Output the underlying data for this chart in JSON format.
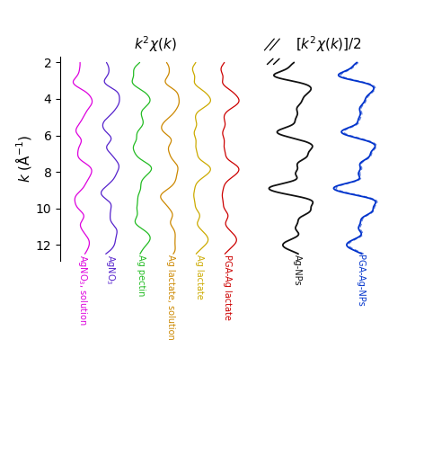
{
  "k_min": 2.0,
  "k_max": 12.5,
  "yticks": [
    2,
    4,
    6,
    8,
    10,
    12
  ],
  "curves_left": [
    {
      "name": "AgNO$_3$, solution",
      "color": "#dd00dd",
      "x_offset": 0.0,
      "amp": 0.38,
      "freqs": [
        1.7,
        3.1,
        4.8
      ],
      "phases": [
        0.5,
        1.2,
        2.1
      ],
      "weights": [
        0.55,
        0.3,
        0.15
      ]
    },
    {
      "name": "AgNO$_3$",
      "color": "#5522cc",
      "x_offset": 0.9,
      "amp": 0.38,
      "freqs": [
        1.75,
        3.3,
        5.1
      ],
      "phases": [
        0.8,
        0.4,
        1.8
      ],
      "weights": [
        0.55,
        0.3,
        0.15
      ]
    },
    {
      "name": "Ag pectin",
      "color": "#22bb22",
      "x_offset": 1.85,
      "amp": 0.38,
      "freqs": [
        1.72,
        3.2,
        5.0
      ],
      "phases": [
        0.2,
        1.8,
        0.5
      ],
      "weights": [
        0.55,
        0.3,
        0.15
      ]
    },
    {
      "name": "Ag lactate, solution",
      "color": "#cc8800",
      "x_offset": 2.8,
      "amp": 0.38,
      "freqs": [
        1.68,
        3.15,
        4.9
      ],
      "phases": [
        1.1,
        0.7,
        2.5
      ],
      "weights": [
        0.55,
        0.3,
        0.15
      ]
    },
    {
      "name": "Ag lactate",
      "color": "#ccaa00",
      "x_offset": 3.7,
      "amp": 0.38,
      "freqs": [
        1.7,
        3.18,
        4.95
      ],
      "phases": [
        0.9,
        1.5,
        0.3
      ],
      "weights": [
        0.55,
        0.3,
        0.15
      ]
    },
    {
      "name": "PGA-Ag lactate",
      "color": "#cc0000",
      "x_offset": 4.6,
      "amp": 0.38,
      "freqs": [
        1.7,
        3.18,
        4.95
      ],
      "phases": [
        0.85,
        1.45,
        0.25
      ],
      "weights": [
        0.55,
        0.3,
        0.15
      ]
    }
  ],
  "curves_right": [
    {
      "name": "Ag-NPs",
      "color": "#111111",
      "x_offset": 6.8,
      "amp": 1.0,
      "freqs": [
        2.0,
        4.0,
        6.1
      ],
      "phases": [
        0.0,
        0.2,
        0.4
      ],
      "weights": [
        0.5,
        0.35,
        0.15
      ],
      "dashed": false
    },
    {
      "name": "PGA-Ag-NPs",
      "color": "#0033cc",
      "x_offset": 8.8,
      "amp": 0.95,
      "freqs": [
        2.0,
        4.0,
        6.1
      ],
      "phases": [
        0.05,
        0.25,
        0.45
      ],
      "weights": [
        0.5,
        0.35,
        0.15
      ],
      "dashed": true
    }
  ],
  "xlim": [
    -0.7,
    10.4
  ],
  "ylim_top": 1.7,
  "ylim_bottom": 12.9,
  "separator_x": 5.95
}
